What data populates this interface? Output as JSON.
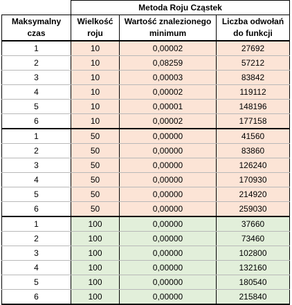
{
  "title": "Metoda Roju Cząstek",
  "headers": {
    "time": "Maksymalny czas",
    "size": "Wielkość roju",
    "value": "Wartość znalezionego minimum",
    "calls": "Liczba odwołań do funkcji"
  },
  "colors": {
    "group1": "#fce4d6",
    "group2": "#fce4d6",
    "group3": "#e2efda"
  },
  "rows": [
    {
      "time": "1",
      "size": "10",
      "value": "0,00002",
      "calls": "27692"
    },
    {
      "time": "2",
      "size": "10",
      "value": "0,08259",
      "calls": "57212"
    },
    {
      "time": "3",
      "size": "10",
      "value": "0,00003",
      "calls": "83842"
    },
    {
      "time": "4",
      "size": "10",
      "value": "0,00002",
      "calls": "119112"
    },
    {
      "time": "5",
      "size": "10",
      "value": "0,00001",
      "calls": "148196"
    },
    {
      "time": "6",
      "size": "10",
      "value": "0,00002",
      "calls": "177158"
    },
    {
      "time": "1",
      "size": "50",
      "value": "0,00000",
      "calls": "41560"
    },
    {
      "time": "2",
      "size": "50",
      "value": "0,00000",
      "calls": "83860"
    },
    {
      "time": "3",
      "size": "50",
      "value": "0,00000",
      "calls": "126240"
    },
    {
      "time": "4",
      "size": "50",
      "value": "0,00000",
      "calls": "170930"
    },
    {
      "time": "5",
      "size": "50",
      "value": "0,00000",
      "calls": "214920"
    },
    {
      "time": "6",
      "size": "50",
      "value": "0,00000",
      "calls": "259030"
    },
    {
      "time": "1",
      "size": "100",
      "value": "0,00000",
      "calls": "37660"
    },
    {
      "time": "2",
      "size": "100",
      "value": "0,00000",
      "calls": "73460"
    },
    {
      "time": "3",
      "size": "100",
      "value": "0,00000",
      "calls": "102800"
    },
    {
      "time": "4",
      "size": "100",
      "value": "0,00000",
      "calls": "132160"
    },
    {
      "time": "5",
      "size": "100",
      "value": "0,00000",
      "calls": "180540"
    },
    {
      "time": "6",
      "size": "100",
      "value": "0,00000",
      "calls": "215840"
    }
  ]
}
